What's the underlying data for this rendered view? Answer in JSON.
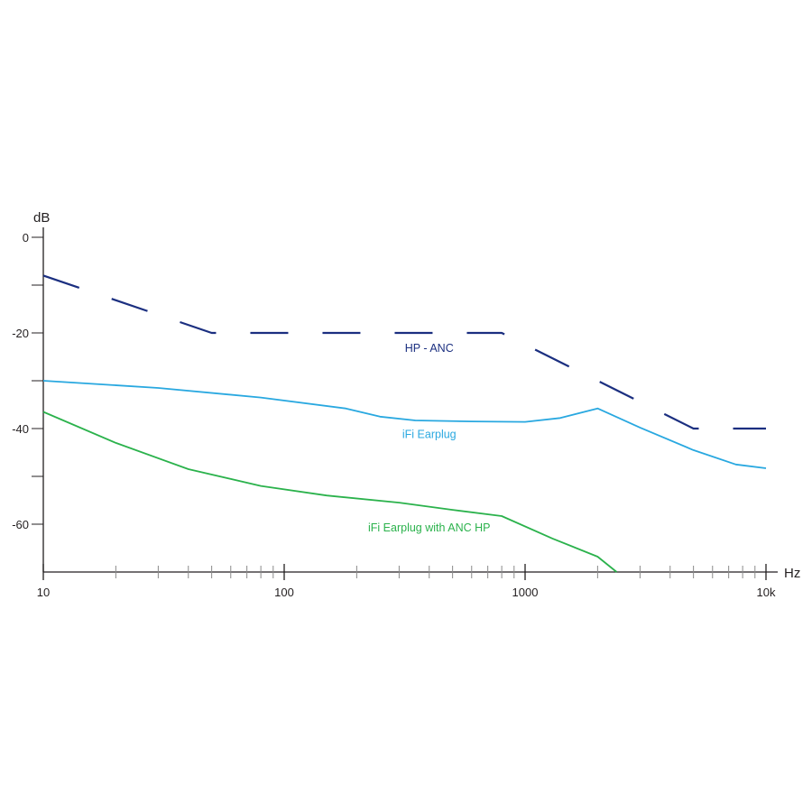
{
  "chart_data": {
    "type": "line",
    "title": "",
    "xlabel": "Hz",
    "ylabel": "dB",
    "x_scale": "log",
    "xlim": [
      10,
      10000
    ],
    "ylim": [
      -70,
      0
    ],
    "x_ticks": [
      {
        "value": 10,
        "label": "10"
      },
      {
        "value": 100,
        "label": "100"
      },
      {
        "value": 1000,
        "label": "1000"
      },
      {
        "value": 10000,
        "label": "10k"
      }
    ],
    "y_ticks": [
      {
        "value": 0,
        "label": "0"
      },
      {
        "value": -10,
        "label": ""
      },
      {
        "value": -20,
        "label": "-20"
      },
      {
        "value": -30,
        "label": ""
      },
      {
        "value": -40,
        "label": "-40"
      },
      {
        "value": -50,
        "label": ""
      },
      {
        "value": -60,
        "label": "-60"
      }
    ],
    "grid": false,
    "series": [
      {
        "name": "HP - ANC",
        "color": "#1b2f80",
        "style": "dashed",
        "label_at": {
          "x": 400,
          "y": -24
        },
        "points": [
          [
            10,
            -8
          ],
          [
            50,
            -20
          ],
          [
            800,
            -20
          ],
          [
            5000,
            -40
          ],
          [
            10000,
            -40
          ]
        ]
      },
      {
        "name": "iFi Earplug",
        "color": "#29a8e0",
        "style": "solid",
        "label_at": {
          "x": 400,
          "y": -42
        },
        "points": [
          [
            10,
            -30
          ],
          [
            30,
            -31.5
          ],
          [
            80,
            -33.5
          ],
          [
            180,
            -35.8
          ],
          [
            250,
            -37.5
          ],
          [
            350,
            -38.3
          ],
          [
            600,
            -38.5
          ],
          [
            1000,
            -38.6
          ],
          [
            1400,
            -37.8
          ],
          [
            2000,
            -35.8
          ],
          [
            3000,
            -39.8
          ],
          [
            5000,
            -44.5
          ],
          [
            7500,
            -47.5
          ],
          [
            10000,
            -48.3
          ]
        ]
      },
      {
        "name": "iFi Earplug with ANC HP",
        "color": "#2bb24c",
        "style": "solid",
        "label_at": {
          "x": 400,
          "y": -61.5
        },
        "points": [
          [
            10,
            -36.5
          ],
          [
            20,
            -43
          ],
          [
            40,
            -48.5
          ],
          [
            80,
            -52
          ],
          [
            150,
            -54
          ],
          [
            300,
            -55.5
          ],
          [
            500,
            -57
          ],
          [
            800,
            -58.3
          ],
          [
            1300,
            -63
          ],
          [
            2000,
            -66.8
          ],
          [
            2400,
            -70
          ]
        ]
      }
    ]
  }
}
